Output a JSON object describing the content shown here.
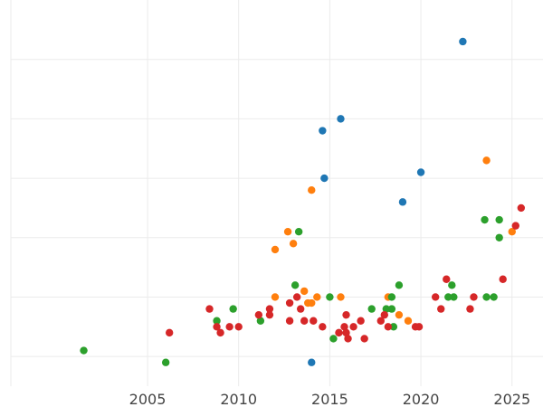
{
  "chart_data": {
    "type": "scatter",
    "title": "",
    "xlabel": "",
    "ylabel": "",
    "xlim": [
      1997.5,
      2026.7
    ],
    "ylim": [
      -0.5,
      6.0
    ],
    "x_ticks": [
      2005,
      2010,
      2015,
      2020,
      2025
    ],
    "x_tick_labels": [
      "2005",
      "2010",
      "2015",
      "2020",
      "2025"
    ],
    "y_gridlines": [
      0,
      1,
      2,
      3,
      4,
      5
    ],
    "y_tick_labels_shown": false,
    "grid": true,
    "legend": "none",
    "series": [
      {
        "color": "#1f77b4",
        "points": [
          {
            "x": 2014.0,
            "y": -0.1
          },
          {
            "x": 2014.6,
            "y": 3.8
          },
          {
            "x": 2014.7,
            "y": 3.0
          },
          {
            "x": 2015.6,
            "y": 4.0
          },
          {
            "x": 2019.0,
            "y": 2.6
          },
          {
            "x": 2020.0,
            "y": 3.1
          },
          {
            "x": 2022.3,
            "y": 5.3
          }
        ]
      },
      {
        "color": "#ff7f0e",
        "points": [
          {
            "x": 2012.0,
            "y": 1.8
          },
          {
            "x": 2012.0,
            "y": 1.0
          },
          {
            "x": 2012.7,
            "y": 2.1
          },
          {
            "x": 2013.0,
            "y": 1.9
          },
          {
            "x": 2013.6,
            "y": 1.1
          },
          {
            "x": 2013.8,
            "y": 0.9
          },
          {
            "x": 2014.0,
            "y": 2.8
          },
          {
            "x": 2014.0,
            "y": 0.9
          },
          {
            "x": 2014.3,
            "y": 1.0
          },
          {
            "x": 2015.6,
            "y": 1.0
          },
          {
            "x": 2018.2,
            "y": 1.0
          },
          {
            "x": 2018.8,
            "y": 0.7
          },
          {
            "x": 2019.3,
            "y": 0.6
          },
          {
            "x": 2023.6,
            "y": 3.3
          },
          {
            "x": 2025.0,
            "y": 2.1
          }
        ]
      },
      {
        "color": "#2ca02c",
        "points": [
          {
            "x": 2001.5,
            "y": 0.1
          },
          {
            "x": 2006.0,
            "y": -0.1
          },
          {
            "x": 2008.8,
            "y": 0.6
          },
          {
            "x": 2009.7,
            "y": 0.8
          },
          {
            "x": 2011.2,
            "y": 0.6
          },
          {
            "x": 2013.1,
            "y": 1.2
          },
          {
            "x": 2013.3,
            "y": 2.1
          },
          {
            "x": 2015.0,
            "y": 1.0
          },
          {
            "x": 2015.2,
            "y": 0.3
          },
          {
            "x": 2017.3,
            "y": 0.8
          },
          {
            "x": 2018.1,
            "y": 0.8
          },
          {
            "x": 2018.4,
            "y": 1.0
          },
          {
            "x": 2018.4,
            "y": 0.8
          },
          {
            "x": 2018.5,
            "y": 0.5
          },
          {
            "x": 2018.8,
            "y": 1.2
          },
          {
            "x": 2021.5,
            "y": 1.0
          },
          {
            "x": 2021.7,
            "y": 1.2
          },
          {
            "x": 2021.8,
            "y": 1.0
          },
          {
            "x": 2023.5,
            "y": 2.3
          },
          {
            "x": 2023.6,
            "y": 1.0
          },
          {
            "x": 2024.0,
            "y": 1.0
          },
          {
            "x": 2024.3,
            "y": 2.3
          },
          {
            "x": 2024.3,
            "y": 2.0
          }
        ]
      },
      {
        "color": "#d62728",
        "points": [
          {
            "x": 2006.2,
            "y": 0.4
          },
          {
            "x": 2008.4,
            "y": 0.8
          },
          {
            "x": 2008.8,
            "y": 0.5
          },
          {
            "x": 2009.0,
            "y": 0.4
          },
          {
            "x": 2009.5,
            "y": 0.5
          },
          {
            "x": 2010.0,
            "y": 0.5
          },
          {
            "x": 2011.1,
            "y": 0.7
          },
          {
            "x": 2011.7,
            "y": 0.8
          },
          {
            "x": 2011.7,
            "y": 0.7
          },
          {
            "x": 2012.8,
            "y": 0.6
          },
          {
            "x": 2012.8,
            "y": 0.9
          },
          {
            "x": 2013.2,
            "y": 1.0
          },
          {
            "x": 2013.4,
            "y": 0.8
          },
          {
            "x": 2013.6,
            "y": 0.6
          },
          {
            "x": 2014.1,
            "y": 0.6
          },
          {
            "x": 2014.6,
            "y": 0.5
          },
          {
            "x": 2015.5,
            "y": 0.4
          },
          {
            "x": 2015.8,
            "y": 0.5
          },
          {
            "x": 2015.9,
            "y": 0.7
          },
          {
            "x": 2015.9,
            "y": 0.4
          },
          {
            "x": 2016.0,
            "y": 0.3
          },
          {
            "x": 2016.3,
            "y": 0.5
          },
          {
            "x": 2016.7,
            "y": 0.6
          },
          {
            "x": 2016.9,
            "y": 0.3
          },
          {
            "x": 2017.8,
            "y": 0.6
          },
          {
            "x": 2018.0,
            "y": 0.7
          },
          {
            "x": 2018.2,
            "y": 0.5
          },
          {
            "x": 2019.7,
            "y": 0.5
          },
          {
            "x": 2019.9,
            "y": 0.5
          },
          {
            "x": 2020.8,
            "y": 1.0
          },
          {
            "x": 2021.1,
            "y": 0.8
          },
          {
            "x": 2021.4,
            "y": 1.3
          },
          {
            "x": 2022.7,
            "y": 0.8
          },
          {
            "x": 2022.9,
            "y": 1.0
          },
          {
            "x": 2024.5,
            "y": 1.3
          },
          {
            "x": 2025.2,
            "y": 2.2
          },
          {
            "x": 2025.5,
            "y": 2.5
          }
        ]
      }
    ]
  }
}
